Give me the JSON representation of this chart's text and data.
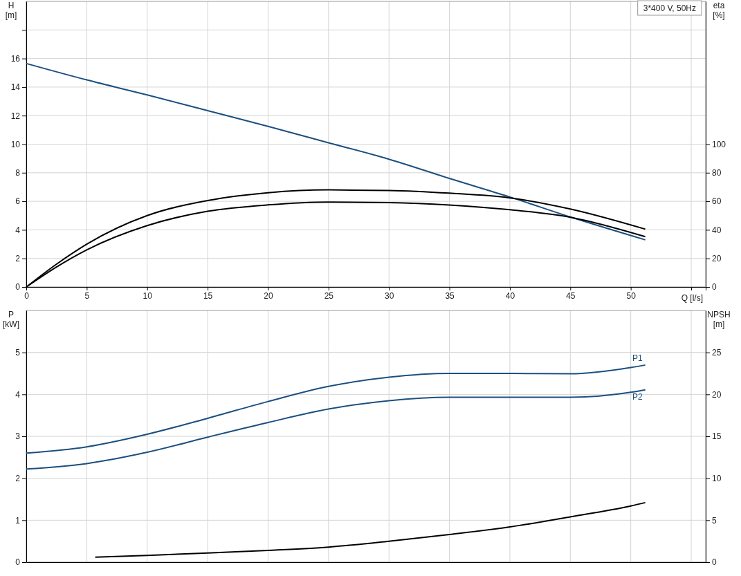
{
  "chart_data": [
    {
      "type": "line",
      "title": "3*400 V, 50Hz",
      "xlabel": "Q [l/s]",
      "ylabel": "H [m]",
      "y2label": "eta [%]",
      "xlim": [
        0,
        56.2
      ],
      "xticks": [
        0,
        5,
        10,
        15,
        20,
        25,
        30,
        35,
        40,
        45,
        50,
        {
          "value": 55,
          "label": null
        }
      ],
      "ylim": [
        0,
        20
      ],
      "yticks": [
        0,
        2,
        4,
        6,
        8,
        10,
        12,
        14,
        16,
        {
          "value": 18,
          "label": null
        }
      ],
      "y2lim": [
        0,
        200
      ],
      "y2ticks": [
        0,
        20,
        40,
        60,
        80,
        100
      ],
      "grid": true,
      "line_style": "solid",
      "marker": "none",
      "series": [
        {
          "color": "#1b4f7f",
          "x": [
            0,
            5,
            10,
            15,
            20,
            25,
            30,
            35,
            40,
            45,
            51.2
          ],
          "values": [
            15.65,
            14.5,
            13.45,
            12.35,
            11.25,
            10.1,
            8.95,
            7.6,
            6.3,
            4.9,
            3.3
          ]
        },
        {
          "color": "#000000",
          "axis": "y2",
          "x": [
            0,
            2.5,
            5,
            10,
            15,
            20,
            25,
            30,
            35,
            40,
            45,
            51.2
          ],
          "values": [
            0,
            16,
            30,
            50,
            60.5,
            66,
            68,
            67.6,
            65.7,
            62.4,
            54.6,
            40.5
          ]
        },
        {
          "color": "#000000",
          "axis": "y2",
          "x": [
            0,
            2.5,
            5,
            10,
            15,
            20,
            25,
            30,
            35,
            40,
            45,
            51.2
          ],
          "values": [
            0,
            14,
            26,
            43,
            53,
            57.5,
            59.5,
            59.1,
            57.4,
            54.1,
            48.8,
            35.2
          ]
        }
      ]
    },
    {
      "type": "line",
      "ylabel": "P [kW]",
      "y2label": "NPSH [m]",
      "xlim": [
        0,
        56.2
      ],
      "xticks": [
        0,
        5,
        10,
        15,
        20,
        25,
        30,
        35,
        40,
        45,
        50,
        55
      ],
      "ylim": [
        0,
        6
      ],
      "yticks": [
        0,
        1,
        2,
        3,
        4,
        5
      ],
      "y2lim": [
        0,
        30
      ],
      "y2ticks": [
        0,
        5,
        10,
        15,
        20,
        25
      ],
      "tick_labels": "y",
      "grid": true,
      "line_style": "solid",
      "marker": "none",
      "series": [
        {
          "name": "P1",
          "color": "#1b4f7f",
          "x": [
            0,
            5,
            10,
            15,
            20,
            25,
            30,
            35,
            40,
            45,
            50,
            51.2
          ],
          "values": [
            2.6,
            2.75,
            3.05,
            3.43,
            3.83,
            4.19,
            4.41,
            4.5,
            4.5,
            4.49,
            4.64,
            4.7
          ]
        },
        {
          "name": "P2",
          "color": "#1b4f7f",
          "x": [
            0,
            5,
            10,
            15,
            20,
            25,
            30,
            35,
            40,
            45,
            50,
            51.2
          ],
          "values": [
            2.22,
            2.35,
            2.62,
            2.98,
            3.33,
            3.65,
            3.85,
            3.93,
            3.93,
            3.93,
            4.05,
            4.11
          ]
        },
        {
          "color": "#000000",
          "axis": "y2",
          "x": [
            5.7,
            10,
            15,
            20,
            25,
            30,
            35,
            40,
            45,
            50,
            51.2
          ],
          "values": [
            0.6,
            0.8,
            1.1,
            1.4,
            1.8,
            2.5,
            3.3,
            4.2,
            5.4,
            6.7,
            7.1
          ]
        }
      ]
    }
  ]
}
